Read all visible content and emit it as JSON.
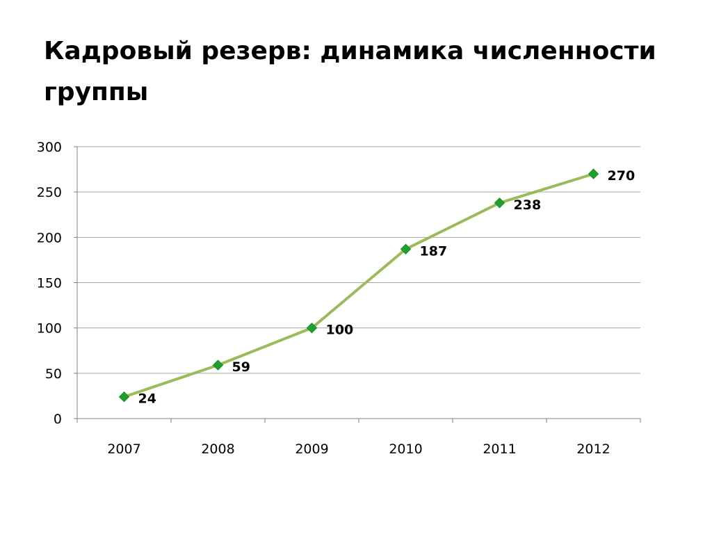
{
  "slide": {
    "title": "Кадровый резерв: динамика численности группы"
  },
  "chart_data": {
    "type": "line",
    "title": "",
    "xlabel": "",
    "ylabel": "",
    "categories": [
      "2007",
      "2008",
      "2009",
      "2010",
      "2011",
      "2012"
    ],
    "series": [
      {
        "values": [
          24,
          59,
          100,
          187,
          238,
          270
        ]
      }
    ],
    "data_labels": [
      "24",
      "59",
      "100",
      "187",
      "238",
      "270"
    ],
    "ylim": [
      0,
      300
    ],
    "yticks": [
      0,
      50,
      100,
      150,
      200,
      250,
      300
    ],
    "ytick_labels": [
      "0",
      "50",
      "100",
      "150",
      "200",
      "250",
      "300"
    ],
    "grid": true,
    "legend": "none",
    "colors": {
      "line": "#9bbb59",
      "marker": "#1fa02d",
      "grid": "#a6a6a6",
      "axis": "#808080"
    }
  }
}
